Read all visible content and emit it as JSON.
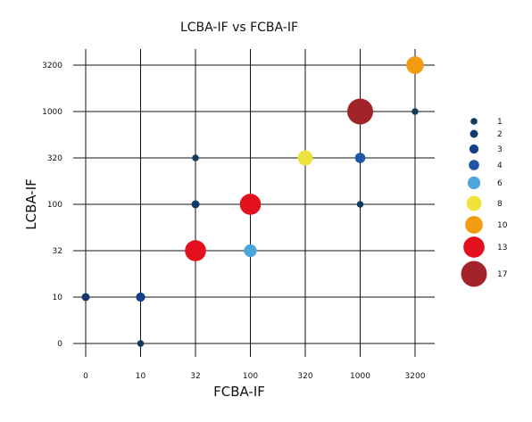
{
  "chart_data": {
    "type": "scatter",
    "title": "LCBA-IF vs FCBA-IF",
    "xlabel": "FCBA-IF",
    "ylabel": "LCBA-IF",
    "x_ticks": [
      "0",
      "10",
      "32",
      "100",
      "320",
      "1000",
      "3200"
    ],
    "y_ticks": [
      "0",
      "10",
      "32",
      "100",
      "320",
      "1000",
      "3200"
    ],
    "grid": true,
    "legend_position": "right",
    "size_legend": [
      {
        "label": "1",
        "value": 1,
        "color": "#0f3b5f"
      },
      {
        "label": "2",
        "value": 2,
        "color": "#123a6b"
      },
      {
        "label": "3",
        "value": 3,
        "color": "#123f8a"
      },
      {
        "label": "4",
        "value": 4,
        "color": "#1f56a6"
      },
      {
        "label": "6",
        "value": 6,
        "color": "#4aa6dc"
      },
      {
        "label": "8",
        "value": 8,
        "color": "#f0e23d"
      },
      {
        "label": "10",
        "value": 10,
        "color": "#f39c12"
      },
      {
        "label": "13",
        "value": 13,
        "color": "#e3101e"
      },
      {
        "label": "17",
        "value": 17,
        "color": "#a3232a"
      }
    ],
    "points": [
      {
        "x": "0",
        "y": "10",
        "count": 2
      },
      {
        "x": "10",
        "y": "10",
        "count": 3
      },
      {
        "x": "10",
        "y": "0",
        "count": 1
      },
      {
        "x": "32",
        "y": "32",
        "count": 13
      },
      {
        "x": "32",
        "y": "100",
        "count": 2
      },
      {
        "x": "32",
        "y": "320",
        "count": 1
      },
      {
        "x": "100",
        "y": "32",
        "count": 6
      },
      {
        "x": "100",
        "y": "100",
        "count": 13
      },
      {
        "x": "320",
        "y": "320",
        "count": 8
      },
      {
        "x": "1000",
        "y": "100",
        "count": 1
      },
      {
        "x": "1000",
        "y": "320",
        "count": 4
      },
      {
        "x": "1000",
        "y": "1000",
        "count": 17
      },
      {
        "x": "3200",
        "y": "1000",
        "count": 1
      },
      {
        "x": "3200",
        "y": "3200",
        "count": 10
      }
    ]
  }
}
